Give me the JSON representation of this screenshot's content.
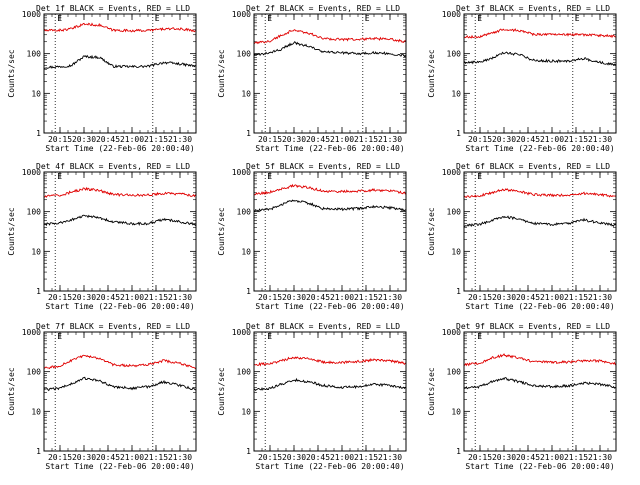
{
  "chart_data": [
    {
      "type": "line",
      "title": "Det 1f BLACK = Events, RED = LLD",
      "xlabel": "Start Time (22-Feb-06 20:00:40)",
      "ylabel": "Counts/sec",
      "yscale": "log",
      "ylim": [
        1,
        1000
      ],
      "xlim": [
        "20:05",
        "21:40"
      ],
      "x_ticks": [
        "20:15",
        "20:30",
        "20:45",
        "21:00",
        "21:15",
        "21:30"
      ],
      "y_ticks": [
        "1",
        "10",
        "100",
        "1000"
      ],
      "markers": [
        {
          "label": "E",
          "time": "20:12"
        },
        {
          "label": "E",
          "time": "21:13"
        }
      ],
      "grid": false,
      "legend": "none",
      "series": [
        {
          "name": "Events",
          "color": "#000000",
          "times": [
            "20:05",
            "20:15",
            "20:22",
            "20:30",
            "20:40",
            "20:48",
            "21:00",
            "21:10",
            "21:20",
            "21:30",
            "21:40"
          ],
          "values": [
            45,
            47,
            50,
            85,
            80,
            48,
            47,
            48,
            60,
            55,
            48
          ]
        },
        {
          "name": "LLD",
          "color": "#e00000",
          "times": [
            "20:05",
            "20:15",
            "20:22",
            "20:30",
            "20:40",
            "20:48",
            "21:00",
            "21:10",
            "21:20",
            "21:30",
            "21:40"
          ],
          "values": [
            380,
            390,
            420,
            560,
            520,
            390,
            380,
            385,
            420,
            420,
            380
          ]
        }
      ]
    },
    {
      "type": "line",
      "title": "Det 2f BLACK = Events, RED = LLD",
      "xlabel": "Start Time (22-Feb-06 20:00:40)",
      "ylabel": "Counts/sec",
      "yscale": "log",
      "ylim": [
        1,
        1000
      ],
      "xlim": [
        "20:05",
        "21:40"
      ],
      "x_ticks": [
        "20:15",
        "20:30",
        "20:45",
        "21:00",
        "21:15",
        "21:30"
      ],
      "y_ticks": [
        "1",
        "10",
        "100",
        "1000"
      ],
      "markers": [
        {
          "label": "E",
          "time": "20:12"
        },
        {
          "label": "E",
          "time": "21:13"
        }
      ],
      "grid": false,
      "legend": "none",
      "series": [
        {
          "name": "Events",
          "color": "#000000",
          "times": [
            "20:05",
            "20:15",
            "20:22",
            "20:30",
            "20:40",
            "20:48",
            "21:00",
            "21:10",
            "21:20",
            "21:30",
            "21:40"
          ],
          "values": [
            90,
            105,
            130,
            190,
            150,
            110,
            105,
            100,
            105,
            100,
            90
          ]
        },
        {
          "name": "LLD",
          "color": "#e00000",
          "times": [
            "20:05",
            "20:15",
            "20:22",
            "20:30",
            "20:40",
            "20:48",
            "21:00",
            "21:10",
            "21:20",
            "21:30",
            "21:40"
          ],
          "values": [
            180,
            210,
            290,
            400,
            320,
            240,
            230,
            230,
            240,
            230,
            200
          ]
        }
      ]
    },
    {
      "type": "line",
      "title": "Det 3f BLACK = Events, RED = LLD",
      "xlabel": "Start Time (22-Feb-06 20:00:40)",
      "ylabel": "Counts/sec",
      "yscale": "log",
      "ylim": [
        1,
        1000
      ],
      "xlim": [
        "20:05",
        "21:40"
      ],
      "x_ticks": [
        "20:15",
        "20:30",
        "20:45",
        "21:00",
        "21:15",
        "21:30"
      ],
      "y_ticks": [
        "1",
        "10",
        "100",
        "1000"
      ],
      "markers": [
        {
          "label": "E",
          "time": "20:12"
        },
        {
          "label": "E",
          "time": "21:13"
        }
      ],
      "grid": false,
      "legend": "none",
      "series": [
        {
          "name": "Events",
          "color": "#000000",
          "times": [
            "20:05",
            "20:15",
            "20:22",
            "20:30",
            "20:40",
            "20:48",
            "21:00",
            "21:10",
            "21:20",
            "21:30",
            "21:40"
          ],
          "values": [
            60,
            62,
            75,
            105,
            95,
            68,
            65,
            65,
            75,
            60,
            52
          ]
        },
        {
          "name": "LLD",
          "color": "#e00000",
          "times": [
            "20:05",
            "20:15",
            "20:22",
            "20:30",
            "20:40",
            "20:48",
            "21:00",
            "21:10",
            "21:20",
            "21:30",
            "21:40"
          ],
          "values": [
            260,
            270,
            320,
            420,
            380,
            310,
            300,
            300,
            300,
            290,
            270
          ]
        }
      ]
    },
    {
      "type": "line",
      "title": "Det 4f BLACK = Events, RED = LLD",
      "xlabel": "Start Time (22-Feb-06 20:00:40)",
      "ylabel": "Counts/sec",
      "yscale": "log",
      "ylim": [
        1,
        1000
      ],
      "xlim": [
        "20:05",
        "21:40"
      ],
      "x_ticks": [
        "20:15",
        "20:30",
        "20:45",
        "21:00",
        "21:15",
        "21:30"
      ],
      "y_ticks": [
        "1",
        "10",
        "100",
        "1000"
      ],
      "markers": [
        {
          "label": "E",
          "time": "20:12"
        },
        {
          "label": "E",
          "time": "21:13"
        }
      ],
      "grid": false,
      "legend": "none",
      "series": [
        {
          "name": "Events",
          "color": "#000000",
          "times": [
            "20:05",
            "20:15",
            "20:22",
            "20:30",
            "20:40",
            "20:48",
            "21:00",
            "21:10",
            "21:20",
            "21:30",
            "21:40"
          ],
          "values": [
            48,
            52,
            62,
            78,
            70,
            55,
            50,
            50,
            65,
            55,
            48
          ]
        },
        {
          "name": "LLD",
          "color": "#e00000",
          "times": [
            "20:05",
            "20:15",
            "20:22",
            "20:30",
            "20:40",
            "20:48",
            "21:00",
            "21:10",
            "21:20",
            "21:30",
            "21:40"
          ],
          "values": [
            240,
            260,
            310,
            380,
            340,
            270,
            260,
            265,
            290,
            280,
            250
          ]
        }
      ]
    },
    {
      "type": "line",
      "title": "Det 5f BLACK = Events, RED = LLD",
      "xlabel": "Start Time (22-Feb-06 20:00:40)",
      "ylabel": "Counts/sec",
      "yscale": "log",
      "ylim": [
        1,
        1000
      ],
      "xlim": [
        "20:05",
        "21:40"
      ],
      "x_ticks": [
        "20:15",
        "20:30",
        "20:45",
        "21:00",
        "21:15",
        "21:30"
      ],
      "y_ticks": [
        "1",
        "10",
        "100",
        "1000"
      ],
      "markers": [
        {
          "label": "E",
          "time": "20:12"
        },
        {
          "label": "E",
          "time": "21:13"
        }
      ],
      "grid": false,
      "legend": "none",
      "series": [
        {
          "name": "Events",
          "color": "#000000",
          "times": [
            "20:05",
            "20:15",
            "20:22",
            "20:30",
            "20:40",
            "20:48",
            "21:00",
            "21:10",
            "21:20",
            "21:30",
            "21:40"
          ],
          "values": [
            105,
            115,
            150,
            195,
            160,
            120,
            115,
            120,
            135,
            125,
            110
          ]
        },
        {
          "name": "LLD",
          "color": "#e00000",
          "times": [
            "20:05",
            "20:15",
            "20:22",
            "20:30",
            "20:40",
            "20:48",
            "21:00",
            "21:10",
            "21:20",
            "21:30",
            "21:40"
          ],
          "values": [
            280,
            310,
            380,
            450,
            400,
            330,
            320,
            330,
            350,
            340,
            290
          ]
        }
      ]
    },
    {
      "type": "line",
      "title": "Det 6f BLACK = Events, RED = LLD",
      "xlabel": "Start Time (22-Feb-06 20:00:40)",
      "ylabel": "Counts/sec",
      "yscale": "log",
      "ylim": [
        1,
        1000
      ],
      "xlim": [
        "20:05",
        "21:40"
      ],
      "x_ticks": [
        "20:15",
        "20:30",
        "20:45",
        "21:00",
        "21:15",
        "21:30"
      ],
      "y_ticks": [
        "1",
        "10",
        "100",
        "1000"
      ],
      "markers": [
        {
          "label": "E",
          "time": "20:12"
        },
        {
          "label": "E",
          "time": "21:13"
        }
      ],
      "grid": false,
      "legend": "none",
      "series": [
        {
          "name": "Events",
          "color": "#000000",
          "times": [
            "20:05",
            "20:15",
            "20:22",
            "20:30",
            "20:40",
            "20:48",
            "21:00",
            "21:10",
            "21:20",
            "21:30",
            "21:40"
          ],
          "values": [
            45,
            48,
            60,
            75,
            65,
            50,
            48,
            50,
            62,
            52,
            45
          ]
        },
        {
          "name": "LLD",
          "color": "#e00000",
          "times": [
            "20:05",
            "20:15",
            "20:22",
            "20:30",
            "20:40",
            "20:48",
            "21:00",
            "21:10",
            "21:20",
            "21:30",
            "21:40"
          ],
          "values": [
            230,
            250,
            300,
            360,
            320,
            270,
            260,
            260,
            290,
            270,
            240
          ]
        }
      ]
    },
    {
      "type": "line",
      "title": "Det 7f BLACK = Events, RED = LLD",
      "xlabel": "Start Time (22-Feb-06 20:00:40)",
      "ylabel": "Counts/sec",
      "yscale": "log",
      "ylim": [
        1,
        1000
      ],
      "xlim": [
        "20:05",
        "21:40"
      ],
      "x_ticks": [
        "20:15",
        "20:30",
        "20:45",
        "21:00",
        "21:15",
        "21:30"
      ],
      "y_ticks": [
        "1",
        "10",
        "100",
        "1000"
      ],
      "markers": [
        {
          "label": "E",
          "time": "20:12"
        },
        {
          "label": "E",
          "time": "21:13"
        }
      ],
      "grid": false,
      "legend": "none",
      "series": [
        {
          "name": "Events",
          "color": "#000000",
          "times": [
            "20:05",
            "20:15",
            "20:22",
            "20:30",
            "20:40",
            "20:48",
            "21:00",
            "21:10",
            "21:20",
            "21:30",
            "21:40"
          ],
          "values": [
            35,
            38,
            50,
            68,
            58,
            42,
            38,
            42,
            55,
            45,
            35
          ]
        },
        {
          "name": "LLD",
          "color": "#e00000",
          "times": [
            "20:05",
            "20:15",
            "20:22",
            "20:30",
            "20:40",
            "20:48",
            "21:00",
            "21:10",
            "21:20",
            "21:30",
            "21:40"
          ],
          "values": [
            120,
            140,
            190,
            250,
            210,
            150,
            140,
            150,
            190,
            160,
            125
          ]
        }
      ]
    },
    {
      "type": "line",
      "title": "Det 8f BLACK = Events, RED = LLD",
      "xlabel": "Start Time (22-Feb-06 20:00:40)",
      "ylabel": "Counts/sec",
      "yscale": "log",
      "ylim": [
        1,
        1000
      ],
      "xlim": [
        "20:05",
        "21:40"
      ],
      "x_ticks": [
        "20:15",
        "20:30",
        "20:45",
        "21:00",
        "21:15",
        "21:30"
      ],
      "y_ticks": [
        "1",
        "10",
        "100",
        "1000"
      ],
      "markers": [
        {
          "label": "E",
          "time": "20:12"
        },
        {
          "label": "E",
          "time": "21:13"
        }
      ],
      "grid": false,
      "legend": "none",
      "series": [
        {
          "name": "Events",
          "color": "#000000",
          "times": [
            "20:05",
            "20:15",
            "20:22",
            "20:30",
            "20:40",
            "20:48",
            "21:00",
            "21:10",
            "21:20",
            "21:30",
            "21:40"
          ],
          "values": [
            35,
            38,
            48,
            62,
            55,
            45,
            40,
            42,
            48,
            45,
            38
          ]
        },
        {
          "name": "LLD",
          "color": "#e00000",
          "times": [
            "20:05",
            "20:15",
            "20:22",
            "20:30",
            "20:40",
            "20:48",
            "21:00",
            "21:10",
            "21:20",
            "21:30",
            "21:40"
          ],
          "values": [
            150,
            160,
            190,
            230,
            210,
            175,
            170,
            180,
            200,
            190,
            160
          ]
        }
      ]
    },
    {
      "type": "line",
      "title": "Det 9f BLACK = Events, RED = LLD",
      "xlabel": "Start Time (22-Feb-06 20:00:40)",
      "ylabel": "Counts/sec",
      "yscale": "log",
      "ylim": [
        1,
        1000
      ],
      "xlim": [
        "20:05",
        "21:40"
      ],
      "x_ticks": [
        "20:15",
        "20:30",
        "20:45",
        "21:00",
        "21:15",
        "21:30"
      ],
      "y_ticks": [
        "1",
        "10",
        "100",
        "1000"
      ],
      "markers": [
        {
          "label": "E",
          "time": "20:12"
        },
        {
          "label": "E",
          "time": "21:13"
        }
      ],
      "grid": false,
      "legend": "none",
      "series": [
        {
          "name": "Events",
          "color": "#000000",
          "times": [
            "20:05",
            "20:15",
            "20:22",
            "20:30",
            "20:40",
            "20:48",
            "21:00",
            "21:10",
            "21:20",
            "21:30",
            "21:40"
          ],
          "values": [
            38,
            42,
            55,
            68,
            55,
            45,
            42,
            44,
            52,
            48,
            40
          ]
        },
        {
          "name": "LLD",
          "color": "#e00000",
          "times": [
            "20:05",
            "20:15",
            "20:22",
            "20:30",
            "20:40",
            "20:48",
            "21:00",
            "21:10",
            "21:20",
            "21:30",
            "21:40"
          ],
          "values": [
            150,
            165,
            220,
            260,
            220,
            180,
            170,
            175,
            190,
            185,
            160
          ]
        }
      ]
    }
  ]
}
